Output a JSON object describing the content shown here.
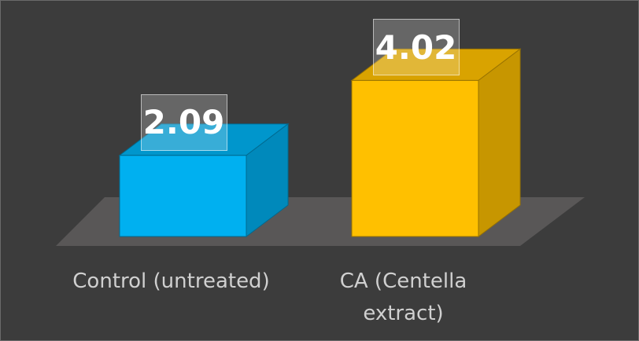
{
  "chart_data": {
    "type": "bar3d",
    "categories": [
      "Control (untreated)",
      "CA (Centella extract)"
    ],
    "values": [
      2.09,
      4.02
    ],
    "colors": [
      "#00b0f0",
      "#ffc000"
    ]
  }
}
